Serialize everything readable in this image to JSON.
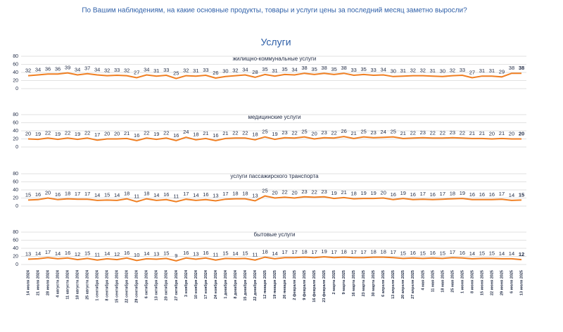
{
  "title": "По Вашим наблюдениям, на какие основные продукты, товары и услуги цены за последний месяц заметно выросли?",
  "section": "Услуги",
  "chart_data": [
    {
      "type": "line",
      "title": "жилищно-коммунальные услуги",
      "color": "#f07f22",
      "ylim": [
        0,
        80
      ],
      "yticks": [
        0,
        20,
        40,
        60,
        80
      ],
      "grid": true,
      "values": [
        32,
        34,
        36,
        36,
        39,
        34,
        37,
        34,
        32,
        33,
        32,
        27,
        34,
        31,
        33,
        25,
        32,
        31,
        33,
        26,
        30,
        32,
        34,
        28,
        35,
        31,
        35,
        34,
        38,
        35,
        38,
        35,
        38,
        33,
        35,
        33,
        34,
        30,
        31,
        32,
        32,
        31,
        30,
        32,
        33,
        27,
        31,
        31,
        29,
        38,
        38
      ]
    },
    {
      "type": "line",
      "title": "медицинские услуги",
      "color": "#f07f22",
      "ylim": [
        0,
        80
      ],
      "yticks": [
        0,
        20,
        40,
        60,
        80
      ],
      "grid": true,
      "values": [
        20,
        19,
        22,
        19,
        22,
        19,
        22,
        17,
        20,
        20,
        21,
        16,
        22,
        19,
        22,
        16,
        24,
        18,
        21,
        16,
        21,
        22,
        22,
        18,
        25,
        19,
        23,
        22,
        25,
        20,
        23,
        22,
        26,
        21,
        25,
        23,
        24,
        25,
        21,
        22,
        23,
        22,
        22,
        23,
        22,
        21,
        21,
        20,
        21,
        20,
        20
      ]
    },
    {
      "type": "line",
      "title": "услуги пассажирского транспорта",
      "color": "#f07f22",
      "ylim": [
        0,
        80
      ],
      "yticks": [
        0,
        20,
        40,
        60,
        80
      ],
      "grid": true,
      "values": [
        15,
        16,
        20,
        16,
        18,
        17,
        17,
        14,
        15,
        14,
        18,
        11,
        18,
        14,
        16,
        11,
        17,
        14,
        16,
        13,
        17,
        18,
        18,
        13,
        25,
        20,
        22,
        20,
        23,
        22,
        23,
        19,
        21,
        18,
        19,
        19,
        20,
        16,
        19,
        16,
        17,
        16,
        17,
        18,
        19,
        16,
        16,
        16,
        17,
        14,
        15
      ]
    },
    {
      "type": "line",
      "title": "бытовые услуги",
      "color": "#f07f22",
      "ylim": [
        0,
        80
      ],
      "yticks": [
        0,
        20,
        40,
        60,
        80
      ],
      "grid": true,
      "values": [
        13,
        14,
        17,
        14,
        16,
        12,
        15,
        11,
        14,
        12,
        16,
        10,
        14,
        13,
        15,
        9,
        16,
        13,
        16,
        11,
        15,
        14,
        15,
        11,
        18,
        14,
        17,
        17,
        18,
        17,
        19,
        17,
        18,
        17,
        17,
        18,
        18,
        17,
        15,
        16,
        15,
        16,
        15,
        17,
        16,
        14,
        15,
        15,
        14,
        14,
        12
      ],
      "categories": [
        "14 июля 2024",
        "21 июля 2024",
        "28 июля 2024",
        "4 августа 2024",
        "11 августа 2024",
        "18 августа 2024",
        "25 августа 2024",
        "1 сентября 2024",
        "8 сентября 2024",
        "15 сентября 2024",
        "22 сентября 2024",
        "29 сентября 2024",
        "6 октября 2024",
        "13 октября 2024",
        "20 октября 2024",
        "27 октября 2024",
        "3 ноября 2024",
        "10 ноября 2024",
        "17 ноября 2024",
        "24 ноября 2024",
        "1 декабря 2024",
        "8 декабря 2024",
        "15 декабря 2024",
        "22 декабря 2024",
        "12 января 2025",
        "19 января 2025",
        "26 января 2025",
        "2 февраля 2025",
        "9 февраля 2025",
        "16 февраля 2025",
        "23 февраля 2025",
        "2 марта 2025",
        "9 марта 2025",
        "16 марта 2025",
        "23 марта 2025",
        "30 марта 2025",
        "6 апреля 2025",
        "13 апреля 2025",
        "20 апреля 2025",
        "27 апреля 2025",
        "4 мая 2025",
        "11 мая 2025",
        "18 мая 2025",
        "25 мая 2025",
        "1 июня 2025",
        "8 июня 2025",
        "15 июня 2025",
        "22 июня 2025",
        "29 июня 2025",
        "6 июля 2025",
        "13 июля 2025"
      ]
    }
  ]
}
